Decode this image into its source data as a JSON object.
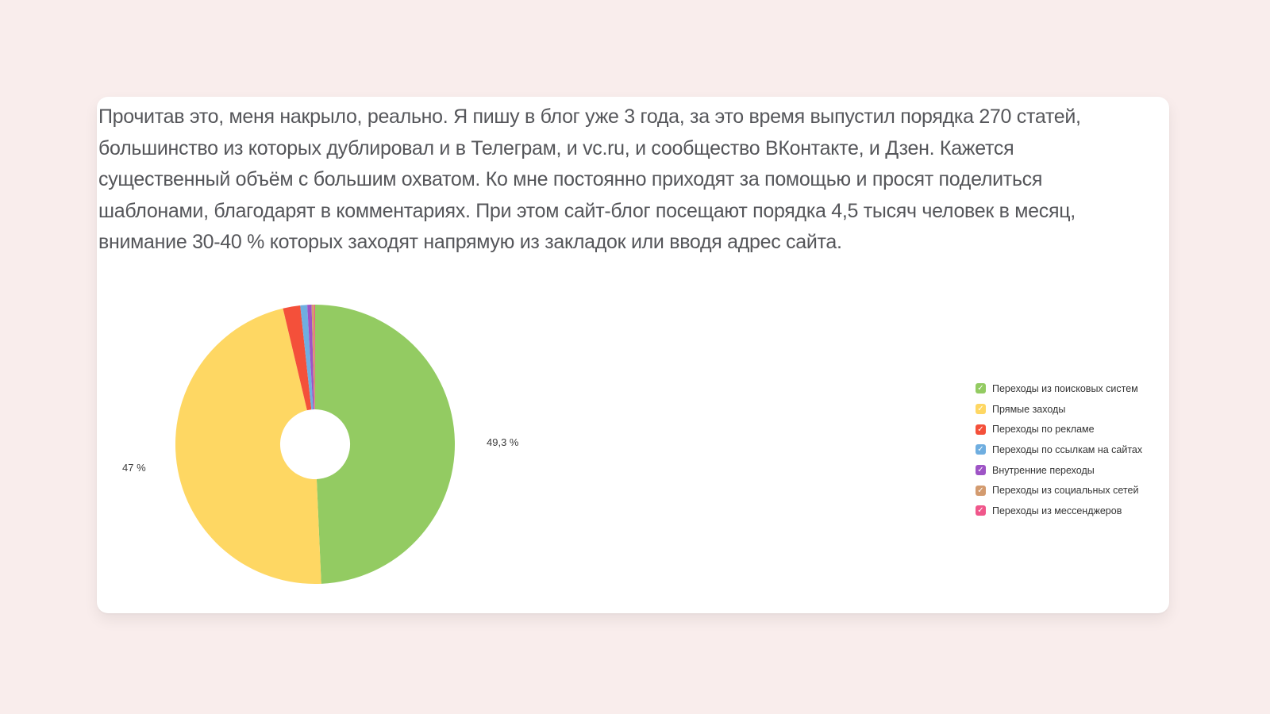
{
  "page": {
    "background_color": "#f9edec",
    "card_color": "#ffffff"
  },
  "article": {
    "text_lines": [
      "Прочитав это, меня накрыло, реально. Я пишу в блог уже 3 года, за это время выпустил порядка 270 статей,",
      "большинство из которых дублировал и в Телеграм, и vc.ru, и сообщество ВКонтакте, и Дзен. Кажется",
      "существенный объём с большим охватом. Ко мне постоянно приходят за помощью и просят поделиться",
      "шаблонами, благодарят в комментариях. При этом сайт-блог посещают порядка 4,5 тысяч человек в месяц,",
      "внимание 30-40 % которых заходят напрямую из закладок или вводя адрес сайта."
    ]
  },
  "chart_data": {
    "type": "pie",
    "subtype": "donut",
    "title": "",
    "start_angle_deg": -90,
    "direction": "clockwise",
    "inner_radius_ratio": 0.25,
    "legend_position": "right",
    "legend_marker": "checkbox-checked",
    "series": [
      {
        "name": "Переходы из поисковых систем",
        "value": 49.3,
        "color": "#93CB62",
        "label": "49,3 %"
      },
      {
        "name": "Прямые заходы",
        "value": 47.0,
        "color": "#FED763",
        "label": "47 %"
      },
      {
        "name": "Переходы по рекламе",
        "value": 2.0,
        "color": "#F4503A",
        "label": ""
      },
      {
        "name": "Переходы по ссылкам на сайтах",
        "value": 0.8,
        "color": "#6FAEE0",
        "label": ""
      },
      {
        "name": "Внутренние переходы",
        "value": 0.5,
        "color": "#9E54C6",
        "label": ""
      },
      {
        "name": "Переходы из социальных сетей",
        "value": 0.3,
        "color": "#D39B6F",
        "label": ""
      },
      {
        "name": "Переходы из мессенджеров",
        "value": 0.1,
        "color": "#F0578B",
        "label": ""
      }
    ]
  }
}
